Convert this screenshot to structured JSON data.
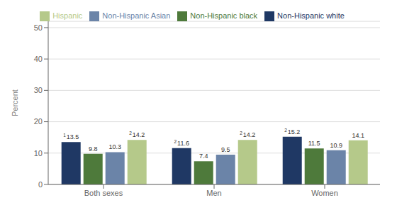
{
  "chart_data": {
    "type": "bar",
    "categories": [
      "Both sexes",
      "Men",
      "Women"
    ],
    "series": [
      {
        "name": "Non-Hispanic white",
        "color": "#1F3864",
        "values": [
          13.5,
          11.6,
          15.2
        ],
        "superscripts": [
          "1",
          "2",
          "2"
        ]
      },
      {
        "name": "Non-Hispanic black",
        "color": "#4E7A3B",
        "values": [
          9.8,
          7.4,
          11.5
        ]
      },
      {
        "name": "Non-Hispanic Asian",
        "color": "#6B84A8",
        "values": [
          10.3,
          9.5,
          10.9
        ]
      },
      {
        "name": "Hispanic",
        "color": "#B5C98A",
        "values": [
          14.2,
          14.2,
          14.1
        ],
        "superscripts": [
          "2",
          "2",
          null
        ]
      }
    ],
    "y_label": "Percent",
    "ylim": [
      0,
      52
    ],
    "yticks": [
      0,
      10,
      20,
      30,
      40,
      50
    ],
    "grid": true,
    "legend": "top",
    "data_labels": true
  }
}
